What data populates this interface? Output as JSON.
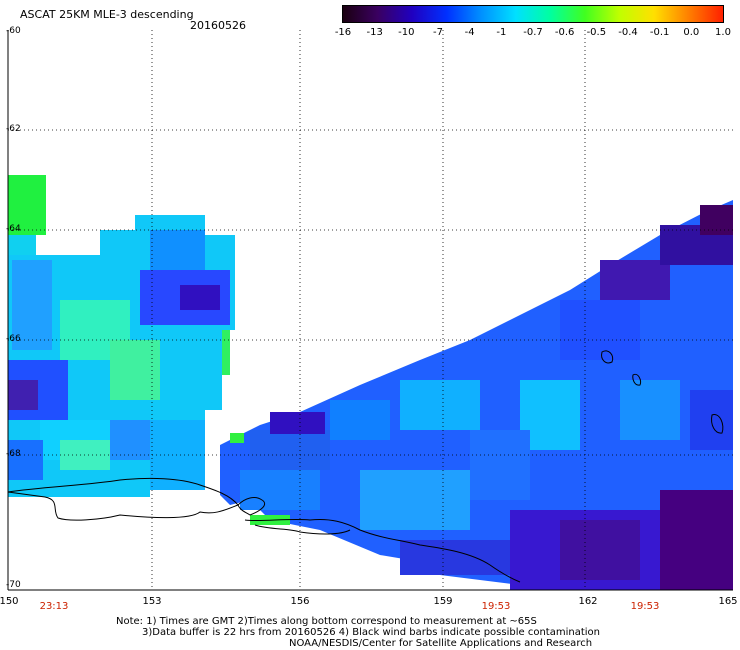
{
  "header": {
    "title": "ASCAT 25KM MLE-3 descending",
    "date": "20160526"
  },
  "colorbar": {
    "labels": [
      "-16",
      "-13",
      "-10",
      "-7",
      "-4",
      "-1",
      "-0.7",
      "-0.6",
      "-0.5",
      "-0.4",
      "-0.1",
      "0.0",
      "1.0"
    ],
    "colors": [
      "#1a0010",
      "#3a0060",
      "#2000c0",
      "#0030ff",
      "#0090ff",
      "#00e0ff",
      "#00ffa0",
      "#40ff20",
      "#c0ff00",
      "#ffe000",
      "#ff8000",
      "#ff2000"
    ]
  },
  "axes": {
    "lat_labels": [
      "-60",
      "-62",
      "-64",
      "-66",
      "-68",
      "-70"
    ],
    "lon_labels": [
      "150",
      "153",
      "156",
      "159",
      "162",
      "165"
    ],
    "time_labels": [
      "23:13",
      "19:53",
      "19:53"
    ]
  },
  "notes": {
    "line1": "Note: 1) Times are GMT 2)Times along bottom correspond to measurement at ~65S",
    "line2": "3)Data buffer is 22 hrs from 20160526 4) Black wind barbs indicate possible contamination",
    "line3": "NOAA/NESDIS/Center for Satellite Applications and Research"
  }
}
